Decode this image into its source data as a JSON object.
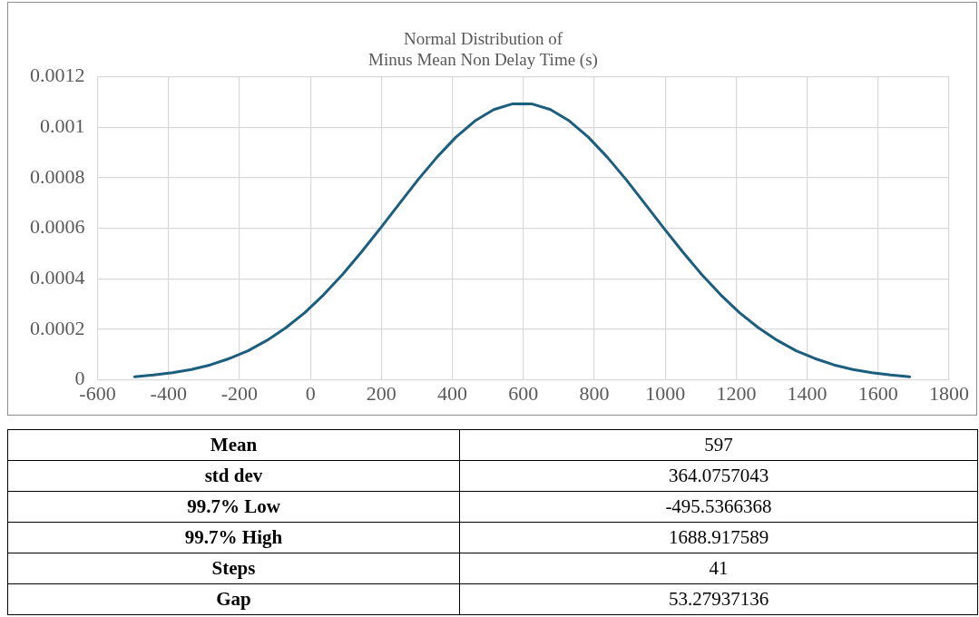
{
  "chart_data": {
    "type": "line",
    "title": "Normal Distribution of\nMinus Mean Non Delay Time (s)",
    "x": [
      -495.5,
      -442.3,
      -389.0,
      -335.7,
      -282.4,
      -229.1,
      -175.9,
      -122.6,
      -69.3,
      -16.0,
      37.3,
      90.5,
      143.8,
      197.1,
      250.4,
      303.7,
      356.9,
      410.2,
      463.5,
      516.8,
      570.1,
      623.3,
      676.6,
      729.9,
      783.2,
      836.5,
      889.7,
      943.0,
      996.3,
      1049.6,
      1102.8,
      1156.1,
      1209.4,
      1262.7,
      1316.0,
      1369.2,
      1422.5,
      1475.8,
      1529.1,
      1582.4,
      1635.6,
      1688.9
    ],
    "series": [
      {
        "color": "#1b5e7d",
        "values": [
          1.2e-05,
          1.9e-05,
          2.8e-05,
          4.1e-05,
          5.9e-05,
          8.4e-05,
          0.000115,
          0.000156,
          0.000206,
          0.000266,
          0.000337,
          0.000417,
          0.000506,
          0.0006,
          0.000697,
          0.000793,
          0.000882,
          0.000961,
          0.001025,
          0.00107,
          0.001093,
          0.001093,
          0.00107,
          0.001025,
          0.000961,
          0.000882,
          0.000793,
          0.000697,
          0.0006,
          0.000506,
          0.000417,
          0.000337,
          0.000266,
          0.000206,
          0.000156,
          0.000115,
          8.4e-05,
          5.9e-05,
          4.1e-05,
          2.8e-05,
          1.9e-05,
          1.2e-05
        ]
      }
    ],
    "xlim": [
      -600,
      1800
    ],
    "xticks": [
      -600,
      -400,
      -200,
      0,
      200,
      400,
      600,
      800,
      1000,
      1200,
      1400,
      1600,
      1800
    ],
    "ylim": [
      0,
      0.0012
    ],
    "yticks": [
      0,
      0.0002,
      0.0004,
      0.0006,
      0.0008,
      0.001,
      0.0012
    ],
    "grid": true,
    "legend": false,
    "marker": "none",
    "line_style": "solid",
    "annotations": [
      "Mean",
      "597",
      "std dev",
      "364.0757043",
      "99.7% Low",
      "-495.5366368",
      "99.7% High",
      "1688.917589",
      "Steps",
      "41",
      "Gap",
      "53.27937136"
    ]
  }
}
